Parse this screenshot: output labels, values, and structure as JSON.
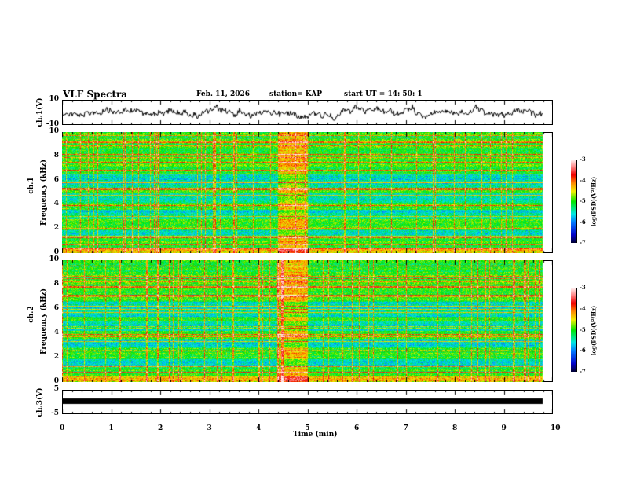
{
  "header": {
    "title": "VLF Spectra",
    "date": "Feb. 11, 2026",
    "station": "station= KAP",
    "start": "start  UT =   14: 50: 1"
  },
  "chart_data": [
    {
      "type": "line",
      "name": "ch1-waveform",
      "ylabel": "ch.1(V)",
      "ylim": [
        -10,
        10
      ],
      "yticks": [
        "10",
        "-10"
      ],
      "xlim": [
        0,
        10
      ]
    },
    {
      "type": "heatmap",
      "name": "ch1-spectrogram",
      "ylabel_top": "ch.1",
      "ylabel": "Frequency (kHz)",
      "ylim": [
        0,
        10
      ],
      "yticks": [
        "0",
        "2",
        "4",
        "6",
        "8",
        "10"
      ],
      "xlim": [
        0,
        10
      ],
      "data_end_min": 9.8,
      "elevated_interval_min": [
        4.4,
        5.0
      ],
      "colorbar": {
        "label": "log(PSD)(V²/Hz)",
        "range": [
          -7,
          -3
        ],
        "ticks": [
          "-3",
          "-4",
          "-5",
          "-6",
          "-7"
        ]
      }
    },
    {
      "type": "heatmap",
      "name": "ch2-spectrogram",
      "ylabel_top": "ch.2",
      "ylabel": "Frequency (kHz)",
      "ylim": [
        0,
        10
      ],
      "yticks": [
        "0",
        "2",
        "4",
        "6",
        "8",
        "10"
      ],
      "xlim": [
        0,
        10
      ],
      "data_end_min": 9.8,
      "elevated_interval_min": [
        4.4,
        5.0
      ],
      "colorbar": {
        "label": "log(PSD)(V²/Hz)",
        "range": [
          -7,
          -3
        ],
        "ticks": [
          "-3",
          "-4",
          "-5",
          "-6",
          "-7"
        ]
      }
    },
    {
      "type": "line",
      "name": "ch3-waveform",
      "ylabel": "ch.3(V)",
      "ylim": [
        -5,
        5
      ],
      "yticks": [
        "5",
        "-5"
      ],
      "xlim": [
        0,
        10
      ],
      "constant_value": 0
    }
  ],
  "xaxis": {
    "label": "Time (min)",
    "ticks": [
      "0",
      "1",
      "2",
      "3",
      "4",
      "5",
      "6",
      "7",
      "8",
      "9",
      "10"
    ]
  }
}
